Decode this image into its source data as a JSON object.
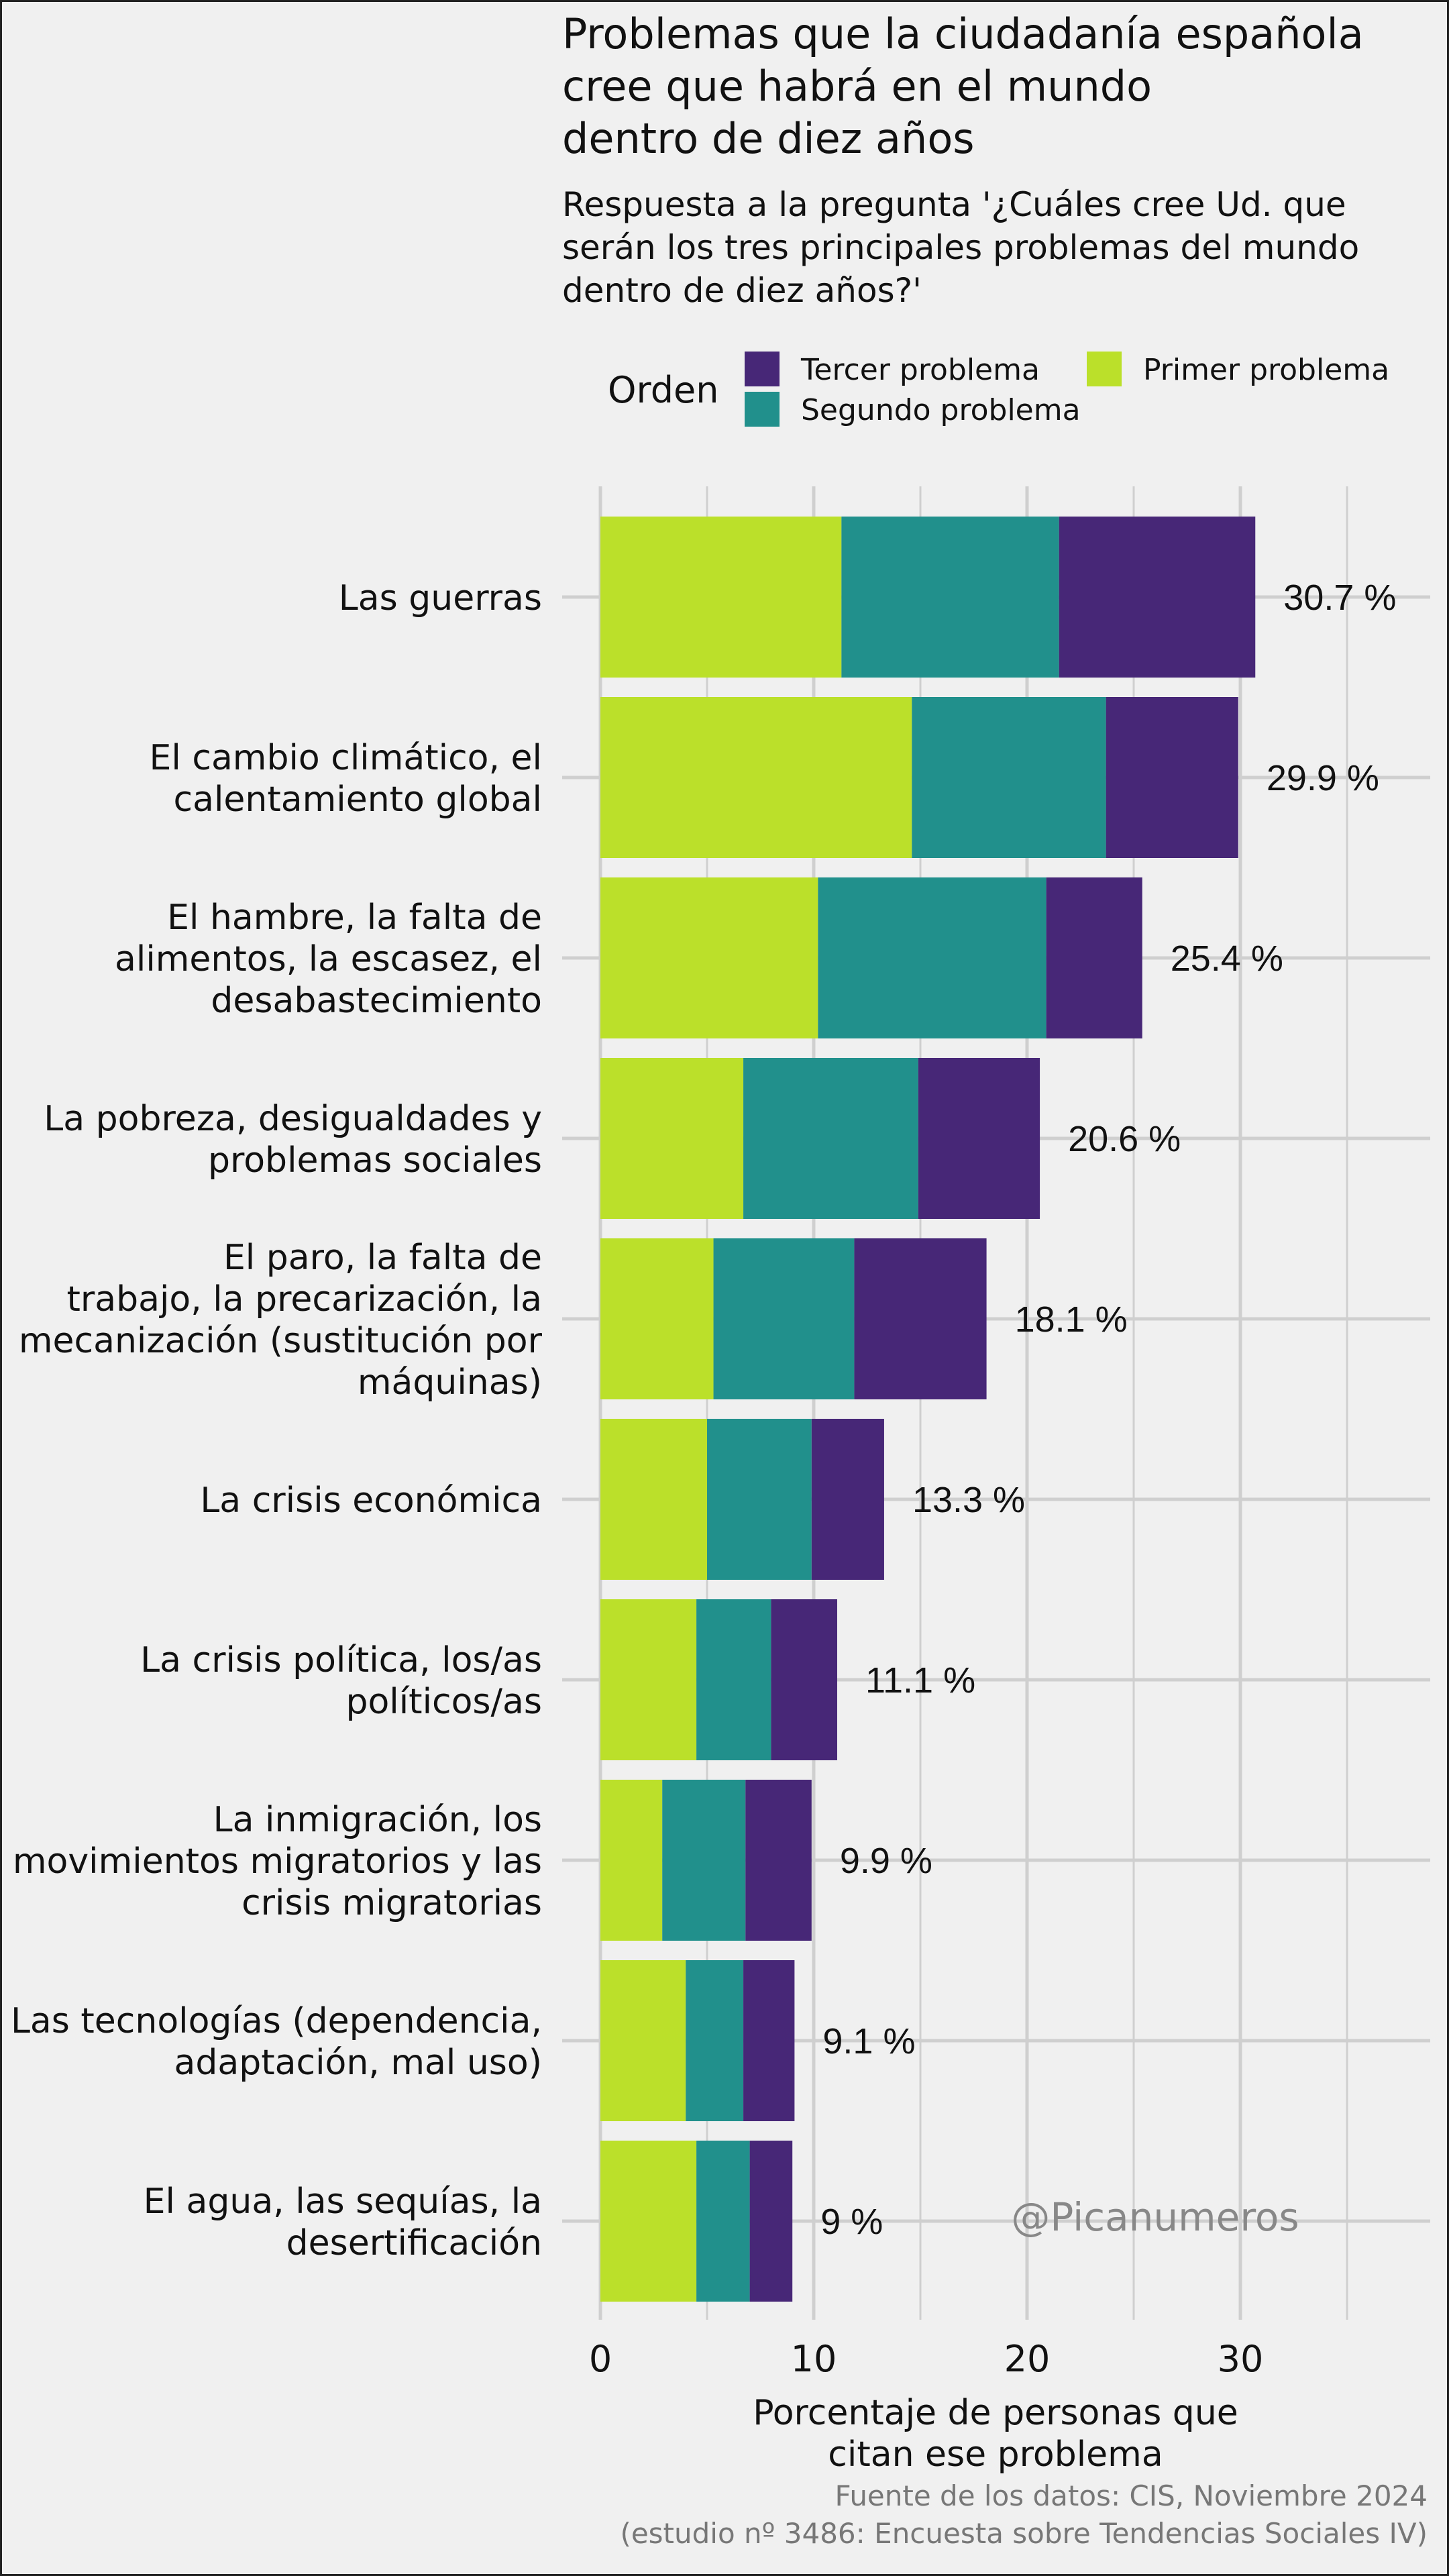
{
  "title_lines": [
    "Problemas que la ciudadanía española",
    "cree que habrá en el mundo",
    "dentro de diez años"
  ],
  "subtitle_lines": [
    "Respuesta a la pregunta '¿Cuáles cree Ud. que",
    "serán los tres principales problemas del mundo",
    "dentro de diez años?'"
  ],
  "legend": {
    "title": "Orden",
    "items": [
      {
        "name": "Tercer problema",
        "color": "#472777"
      },
      {
        "name": "Segundo problema",
        "color": "#21908c"
      },
      {
        "name": "Primer problema",
        "color": "#bbe02a"
      }
    ]
  },
  "watermark": "@Picanumeros",
  "caption_lines": [
    "Fuente de los datos: CIS, Noviembre 2024",
    "(estudio nº 3486: Encuesta sobre Tendencias Sociales IV)"
  ],
  "xlabel_lines": [
    "Porcentaje de personas que",
    "citan ese problema"
  ],
  "chart_data": {
    "type": "bar",
    "orientation": "horizontal",
    "stacked": true,
    "xlim": [
      0,
      36
    ],
    "xticks": [
      0,
      10,
      20,
      30
    ],
    "grid": true,
    "legend_position": "top",
    "categories": [
      [
        "Las guerras"
      ],
      [
        "El cambio climático, el",
        "calentamiento global"
      ],
      [
        "El hambre, la falta de",
        "alimentos, la escasez, el",
        "desabastecimiento"
      ],
      [
        "La pobreza, desigualdades y",
        "problemas sociales"
      ],
      [
        "El paro, la falta de",
        "trabajo, la precarización, la",
        "mecanización (sustitución por",
        "máquinas)"
      ],
      [
        "La crisis económica"
      ],
      [
        "La crisis política, los/as",
        "políticos/as"
      ],
      [
        "La inmigración, los",
        "movimientos migratorios y las",
        "crisis migratorias"
      ],
      [
        "Las tecnologías (dependencia,",
        "adaptación, mal uso)"
      ],
      [
        "El agua, las sequías, la",
        "desertificación"
      ]
    ],
    "series": [
      {
        "name": "Primer problema",
        "values": [
          11.3,
          14.6,
          10.2,
          6.7,
          5.3,
          5.0,
          4.5,
          2.9,
          4.0,
          4.5
        ]
      },
      {
        "name": "Segundo problema",
        "values": [
          10.2,
          9.1,
          10.7,
          8.2,
          6.6,
          4.9,
          3.5,
          3.9,
          2.7,
          2.5
        ]
      },
      {
        "name": "Tercer problema",
        "values": [
          9.2,
          6.2,
          4.5,
          5.7,
          6.2,
          3.4,
          3.1,
          3.1,
          2.4,
          2.0
        ]
      }
    ],
    "totals": [
      30.7,
      29.9,
      25.4,
      20.6,
      18.1,
      13.3,
      11.1,
      9.9,
      9.1,
      9.0
    ],
    "total_labels": [
      "30.7 %",
      "29.9 %",
      "25.4 %",
      "20.6 %",
      "18.1 %",
      "13.3 %",
      "11.1 %",
      "9.9 %",
      "9.1 %",
      "9 %"
    ]
  }
}
